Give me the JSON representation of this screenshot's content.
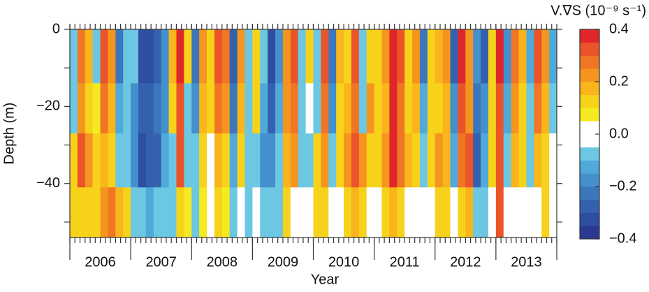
{
  "chart_data": {
    "type": "contour",
    "xlabel": "Year",
    "ylabel": "Depth (m)",
    "colorbar_label": "V.∇S (10⁻⁹ s⁻¹)",
    "xlim": [
      2006,
      2014
    ],
    "xticks": [
      {
        "value": 2006.5,
        "label": "2006"
      },
      {
        "value": 2007.5,
        "label": "2007"
      },
      {
        "value": 2008.5,
        "label": "2008"
      },
      {
        "value": 2009.5,
        "label": "2009"
      },
      {
        "value": 2010.5,
        "label": "2010"
      },
      {
        "value": 2011.5,
        "label": "2011"
      },
      {
        "value": 2012.5,
        "label": "2012"
      },
      {
        "value": 2013.5,
        "label": "2013"
      }
    ],
    "ylim": [
      -54,
      0
    ],
    "yticks": [
      0,
      {
        "value": -20,
        "label": "−20"
      },
      {
        "value": -40,
        "label": "−40"
      }
    ],
    "yticks_minor": [
      -10,
      -30,
      -50
    ],
    "x": [
      2006.0625,
      2006.1875,
      2006.3125,
      2006.4375,
      2006.5625,
      2006.6875,
      2006.8125,
      2006.9375,
      2007.0625,
      2007.1875,
      2007.3125,
      2007.4375,
      2007.5625,
      2007.6875,
      2007.8125,
      2007.9375,
      2008.0625,
      2008.1875,
      2008.3125,
      2008.4375,
      2008.5625,
      2008.6875,
      2008.8125,
      2008.9375,
      2009.0625,
      2009.1875,
      2009.3125,
      2009.4375,
      2009.5625,
      2009.6875,
      2009.8125,
      2009.9375,
      2010.0625,
      2010.1875,
      2010.3125,
      2010.4375,
      2010.5625,
      2010.6875,
      2010.8125,
      2010.9375,
      2011.0625,
      2011.1875,
      2011.3125,
      2011.4375,
      2011.5625,
      2011.6875,
      2011.8125,
      2011.9375,
      2012.0625,
      2012.1875,
      2012.3125,
      2012.4375,
      2012.5625,
      2012.6875,
      2012.8125,
      2012.9375,
      2013.0625,
      2013.1875,
      2013.3125,
      2013.4375,
      2013.5625,
      2013.6875,
      2013.8125,
      2013.9375
    ],
    "y_edges": [
      0,
      -14,
      -27,
      -41,
      -54
    ],
    "z": [
      [
        -0.07,
        0.25,
        0.15,
        -0.07,
        0.3,
        0.2,
        -0.25,
        -0.1,
        -0.1,
        -0.35,
        -0.35,
        -0.3,
        -0.2,
        0.15,
        0.35,
        0.1,
        -0.25,
        0.2,
        0.1,
        0.3,
        0.25,
        -0.3,
        0.2,
        -0.07,
        0.12,
        -0.1,
        -0.35,
        -0.2,
        0.2,
        0.3,
        -0.07,
        0.1,
        -0.07,
        0.3,
        -0.25,
        0.15,
        0.1,
        0.3,
        -0.1,
        0.12,
        0.1,
        0.2,
        0.4,
        0.3,
        0.12,
        0.2,
        -0.25,
        0.1,
        0.15,
        0.2,
        -0.3,
        0.35,
        0.2,
        -0.2,
        -0.3,
        0.1,
        0.35,
        -0.2,
        0.25,
        0.15,
        -0.15,
        0.3,
        0.2,
        -0.15
      ],
      [
        -0.07,
        0.2,
        0.1,
        0.05,
        0.25,
        0.15,
        -0.15,
        -0.08,
        -0.2,
        -0.3,
        -0.3,
        -0.25,
        -0.2,
        0.1,
        0.3,
        -0.07,
        -0.2,
        0.15,
        0.1,
        0.25,
        0.2,
        -0.25,
        0.15,
        -0.07,
        0.12,
        -0.15,
        -0.3,
        -0.15,
        0.2,
        0.25,
        -0.07,
        0.02,
        -0.07,
        0.25,
        -0.2,
        0.12,
        0.15,
        0.25,
        -0.07,
        0.2,
        0.12,
        0.15,
        0.35,
        0.25,
        0.1,
        0.15,
        -0.15,
        0.1,
        0.1,
        0.15,
        -0.2,
        0.3,
        0.2,
        -0.25,
        -0.2,
        0.1,
        0.3,
        -0.15,
        0.2,
        0.1,
        -0.1,
        0.25,
        0.15,
        -0.1
      ],
      [
        0.1,
        0.3,
        0.2,
        0.12,
        0.15,
        0.1,
        -0.1,
        -0.1,
        -0.2,
        -0.35,
        -0.3,
        -0.3,
        -0.15,
        -0.1,
        0.3,
        -0.07,
        -0.1,
        0.1,
        0.02,
        0.15,
        0.1,
        -0.15,
        0.1,
        -0.1,
        -0.07,
        -0.2,
        -0.2,
        -0.1,
        0.15,
        0.2,
        -0.07,
        -0.07,
        0.12,
        0.2,
        -0.1,
        0.1,
        0.2,
        0.3,
        0.2,
        0.1,
        0.1,
        0.2,
        0.35,
        0.25,
        0.15,
        0.1,
        -0.07,
        0.1,
        0.2,
        0.15,
        -0.15,
        0.25,
        0.3,
        -0.3,
        -0.15,
        0.12,
        0.3,
        -0.1,
        0.15,
        0.1,
        -0.07,
        0.15,
        0.12,
        0.02
      ],
      [
        0.1,
        0.12,
        0.1,
        0.12,
        0.2,
        0.25,
        0.15,
        0.12,
        -0.1,
        -0.1,
        -0.15,
        -0.1,
        -0.08,
        -0.07,
        0.1,
        0.08,
        -0.08,
        0.08,
        0.02,
        0.1,
        0.05,
        -0.07,
        0.02,
        -0.07,
        0.02,
        -0.07,
        -0.08,
        -0.07,
        0.1,
        0.02,
        0.02,
        0.02,
        0.1,
        0.12,
        0.02,
        0.02,
        0.1,
        0.15,
        0.1,
        0.02,
        0.02,
        0.1,
        0.15,
        0.1,
        0.02,
        0.02,
        0.02,
        0.02,
        0.12,
        0.12,
        0.02,
        0.1,
        0.15,
        -0.07,
        -0.07,
        0.02,
        0.3,
        0.02,
        0.02,
        0.02,
        0.02,
        0.02,
        0.1,
        0.02
      ]
    ],
    "levels": [
      -0.4,
      -0.35,
      -0.3,
      -0.25,
      -0.2,
      -0.15,
      -0.1,
      -0.05,
      0,
      0.05,
      0.1,
      0.15,
      0.2,
      0.25,
      0.3,
      0.35,
      0.4
    ],
    "colors": [
      "#2b3990",
      "#2e4ea2",
      "#3461ad",
      "#3b77bc",
      "#4390cc",
      "#4fa9da",
      "#6cc7e2",
      "#ffffff",
      "#ffffff",
      "#f4ea1f",
      "#f7d21b",
      "#f9b51b",
      "#f5951f",
      "#f07524",
      "#ea5428",
      "#e0262a"
    ],
    "colorbar_ticks": [
      0.4,
      0.2,
      {
        "value": 0,
        "label": "0.0"
      },
      {
        "value": -0.2,
        "label": "−0.2"
      },
      {
        "value": -0.4,
        "label": "−0.4"
      }
    ]
  }
}
